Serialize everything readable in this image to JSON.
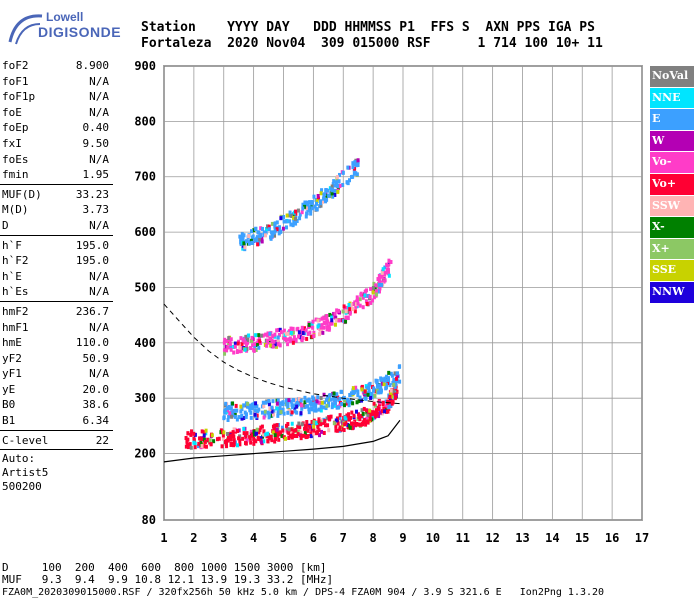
{
  "logo": {
    "line1": "Lowell",
    "line2": "DIGISONDE"
  },
  "header": {
    "line1": "Station    YYYY DAY   DDD HHMMSS P1  FFS S  AXN PPS IGA PS",
    "line2": "Fortaleza  2020 Nov04  309 015000 RSF      1 714 100 10+ 11"
  },
  "params": {
    "group1": [
      {
        "label": "foF2",
        "value": "8.900"
      },
      {
        "label": "foF1",
        "value": "N/A"
      },
      {
        "label": "foF1p",
        "value": "N/A"
      },
      {
        "label": "foE",
        "value": "N/A"
      },
      {
        "label": "foEp",
        "value": "0.40"
      },
      {
        "label": "fxI",
        "value": "9.50"
      },
      {
        "label": "foEs",
        "value": "N/A"
      },
      {
        "label": "fmin",
        "value": "1.95"
      }
    ],
    "group2": [
      {
        "label": "MUF(D)",
        "value": "33.23"
      },
      {
        "label": "M(D)",
        "value": "3.73"
      },
      {
        "label": "D",
        "value": "N/A"
      }
    ],
    "group3": [
      {
        "label": "h`F",
        "value": "195.0"
      },
      {
        "label": "h`F2",
        "value": "195.0"
      },
      {
        "label": "h`E",
        "value": "N/A"
      },
      {
        "label": "h`Es",
        "value": "N/A"
      }
    ],
    "group4": [
      {
        "label": "hmF2",
        "value": "236.7"
      },
      {
        "label": "hmF1",
        "value": "N/A"
      },
      {
        "label": "hmE",
        "value": "110.0"
      },
      {
        "label": "yF2",
        "value": "50.9"
      },
      {
        "label": "yF1",
        "value": "N/A"
      },
      {
        "label": "yE",
        "value": "20.0"
      },
      {
        "label": "B0",
        "value": "38.6"
      },
      {
        "label": "B1",
        "value": "6.34"
      }
    ],
    "group5": [
      {
        "label": "C-level",
        "value": "22"
      }
    ],
    "auto_lines": [
      "Auto:",
      "Artist5",
      "500200"
    ]
  },
  "legend": [
    {
      "label": "NoVal",
      "color": "#808080"
    },
    {
      "label": "NNE",
      "color": "#00e5ff"
    },
    {
      "label": "E",
      "color": "#3ca0ff"
    },
    {
      "label": "W",
      "color": "#b400b4"
    },
    {
      "label": "Vo-",
      "color": "#ff3cc8"
    },
    {
      "label": "Vo+",
      "color": "#ff0033"
    },
    {
      "label": "SSW",
      "color": "#ffb4b4"
    },
    {
      "label": "X-",
      "color": "#008000"
    },
    {
      "label": "X+",
      "color": "#8cc864"
    },
    {
      "label": "SSE",
      "color": "#c8d200"
    },
    {
      "label": "NNW",
      "color": "#1e00dc"
    }
  ],
  "bottom": {
    "line1": "D     100  200  400  600  800 1000 1500 3000 [km]",
    "line2": "MUF   9.3  9.4  9.9 10.8 12.1 13.9 19.3 33.2 [MHz]",
    "line3": "FZA0M_2020309015000.RSF / 320fx256h 50 kHz 5.0 km / DPS-4 FZA0M 904 / 3.9 S 321.6 E   Ion2Png 1.3.20"
  },
  "chart_data": {
    "type": "scatter",
    "xlim": [
      1,
      17
    ],
    "ylim": [
      80,
      900
    ],
    "x_ticks": [
      1,
      2,
      3,
      4,
      5,
      6,
      7,
      8,
      9,
      10,
      11,
      12,
      13,
      14,
      15,
      16,
      17
    ],
    "y_ticks": [
      80,
      200,
      300,
      400,
      500,
      600,
      700,
      800,
      900
    ],
    "grid": true,
    "legend_position": "right",
    "traces": [
      {
        "name": "O-trace F-layer",
        "color": "#ff0033",
        "x": [
          1.7,
          3.0,
          4.0,
          5.0,
          6.0,
          7.0,
          7.8,
          8.5,
          8.8
        ],
        "y": [
          225,
          228,
          232,
          238,
          246,
          256,
          268,
          290,
          320
        ]
      },
      {
        "name": "X-trace",
        "color": "#3ca0ff",
        "x": [
          3.0,
          4.0,
          5.0,
          6.0,
          7.0,
          8.0,
          8.9
        ],
        "y": [
          275,
          278,
          282,
          288,
          298,
          315,
          345
        ]
      },
      {
        "name": "2nd hop",
        "color": "#ff3cc8",
        "x": [
          3.0,
          4.0,
          5.0,
          6.0,
          7.0,
          8.0,
          8.6
        ],
        "y": [
          395,
          400,
          410,
          425,
          450,
          490,
          540
        ]
      },
      {
        "name": "3rd hop",
        "color": "#3ca0ff",
        "x": [
          3.5,
          4.5,
          5.5,
          6.5,
          7.5
        ],
        "y": [
          580,
          600,
          630,
          670,
          720
        ]
      }
    ],
    "profile_curve": {
      "x": [
        1.0,
        2.0,
        3.0,
        4.0,
        5.0,
        6.0,
        7.0,
        8.0,
        8.5,
        8.9
      ],
      "y": [
        185,
        192,
        196,
        200,
        204,
        208,
        213,
        222,
        232,
        260
      ]
    },
    "dashed_curve": {
      "x": [
        1.0,
        1.5,
        2.0,
        2.5,
        3.0,
        3.5,
        4.0,
        4.5,
        5.0,
        6.0,
        7.0,
        8.0,
        8.9
      ],
      "y": [
        470,
        440,
        410,
        385,
        365,
        350,
        338,
        328,
        320,
        308,
        300,
        294,
        290
      ]
    }
  }
}
